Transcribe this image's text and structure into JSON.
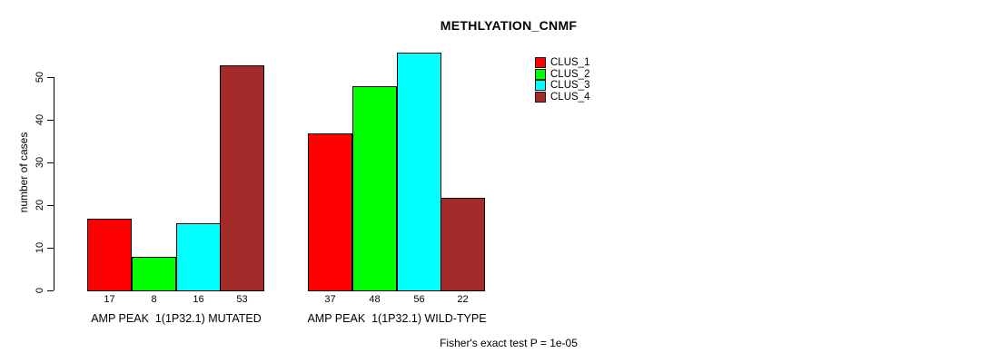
{
  "chart_data": {
    "type": "bar",
    "title": "METHLYATION_CNMF",
    "ylabel": "number of cases",
    "xlabel": "",
    "yticks": [
      0,
      10,
      20,
      30,
      40,
      50
    ],
    "ylim": [
      0,
      56
    ],
    "grid": false,
    "legend_position": "top-right",
    "categories": [
      "AMP PEAK  1(1P32.1) MUTATED",
      "AMP PEAK  1(1P32.1) WILD-TYPE"
    ],
    "series": [
      {
        "name": "CLUS_1",
        "color": "#FF0000",
        "values": [
          17,
          37
        ]
      },
      {
        "name": "CLUS_2",
        "color": "#00FF00",
        "values": [
          8,
          48
        ]
      },
      {
        "name": "CLUS_3",
        "color": "#00FFFF",
        "values": [
          16,
          56
        ]
      },
      {
        "name": "CLUS_4",
        "color": "#A52A2A",
        "values": [
          53,
          22
        ]
      }
    ],
    "bar_value_labels": [
      [
        17,
        8,
        16,
        53
      ],
      [
        37,
        48,
        56,
        22
      ]
    ],
    "annotation": "Fisher's exact test P = 1e-05",
    "axis_color": "#000000",
    "background_color": "#FFFFFF"
  }
}
